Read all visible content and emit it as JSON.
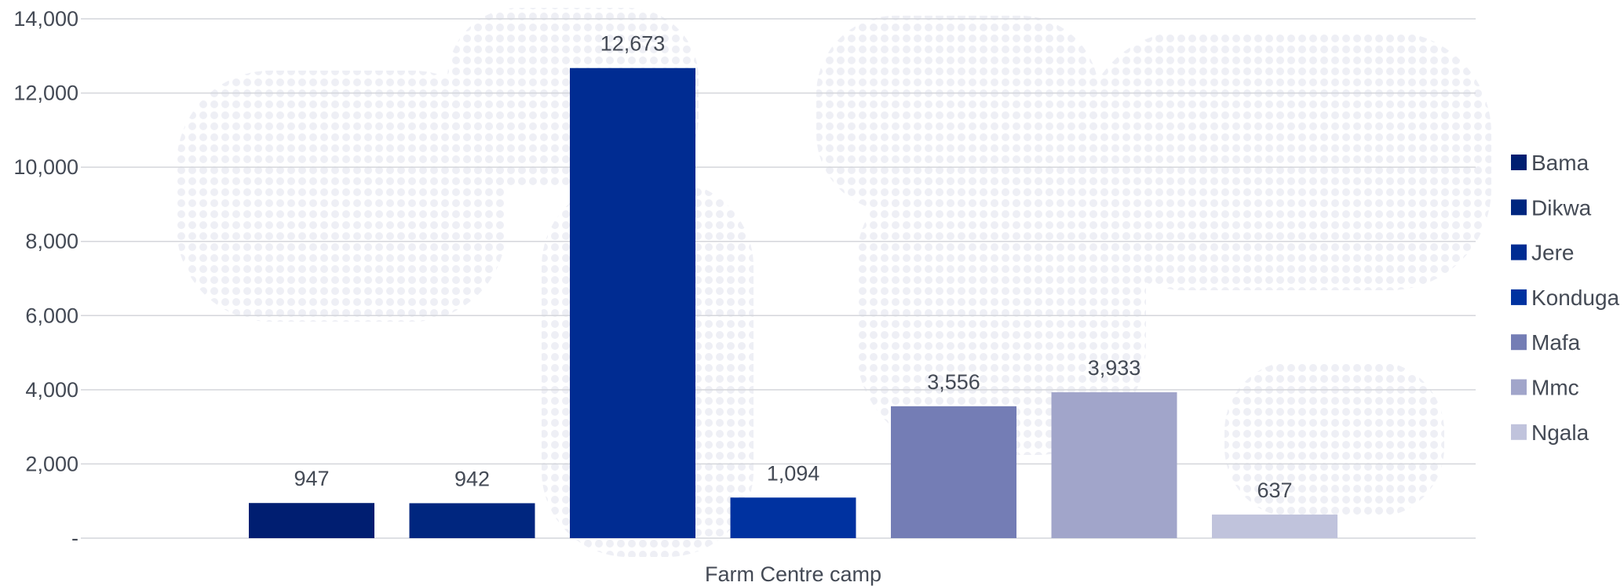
{
  "chart_data": {
    "type": "bar",
    "categories": [
      "Farm Centre camp"
    ],
    "series": [
      {
        "name": "Bama",
        "values": [
          947
        ],
        "label": "947",
        "color": "#001e71"
      },
      {
        "name": "Dikwa",
        "values": [
          942
        ],
        "label": "942",
        "color": "#00267f"
      },
      {
        "name": "Jere",
        "values": [
          12673
        ],
        "label": "12,673",
        "color": "#002c92"
      },
      {
        "name": "Konduga",
        "values": [
          1094
        ],
        "label": "1,094",
        "color": "#0032a0"
      },
      {
        "name": "Mafa",
        "values": [
          3556
        ],
        "label": "3,556",
        "color": "#747db5"
      },
      {
        "name": "Mmc",
        "values": [
          3933
        ],
        "label": "3,933",
        "color": "#a1a5ca"
      },
      {
        "name": "Ngala",
        "values": [
          637
        ],
        "label": "637",
        "color": "#c0c3dc"
      }
    ],
    "y_ticks": [
      {
        "value": 0,
        "label": "-"
      },
      {
        "value": 2000,
        "label": "2,000"
      },
      {
        "value": 4000,
        "label": "4,000"
      },
      {
        "value": 6000,
        "label": "6,000"
      },
      {
        "value": 8000,
        "label": "8,000"
      },
      {
        "value": 10000,
        "label": "10,000"
      },
      {
        "value": 12000,
        "label": "12,000"
      },
      {
        "value": 14000,
        "label": "14,000"
      }
    ],
    "ylim": [
      0,
      14000
    ],
    "xlabel": "",
    "ylabel": "",
    "title": "",
    "grid": true,
    "legend_position": "right"
  }
}
